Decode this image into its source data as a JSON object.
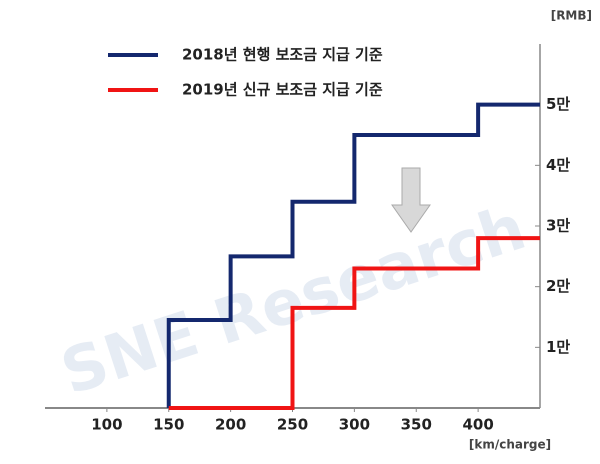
{
  "chart_data": {
    "type": "line",
    "step": "post",
    "x_unit": "[km/charge]",
    "y_unit": "[RMB]",
    "watermark": "SNE Research",
    "xlim": [
      50,
      450
    ],
    "xticks": [
      100,
      150,
      200,
      250,
      300,
      350,
      400
    ],
    "ylim": [
      0,
      60000
    ],
    "yticks": [
      {
        "value": 10000,
        "label": "1만"
      },
      {
        "value": 20000,
        "label": "2만"
      },
      {
        "value": 30000,
        "label": "3만"
      },
      {
        "value": 40000,
        "label": "4만"
      },
      {
        "value": 50000,
        "label": "5만"
      }
    ],
    "legend": "top-left",
    "series": [
      {
        "name": "2018년 현행 보조금 지급 기준",
        "color": "#14286e",
        "x": [
          150,
          150,
          200,
          250,
          300,
          400,
          450
        ],
        "values": [
          0,
          14500,
          25000,
          34000,
          45000,
          50000,
          50000
        ]
      },
      {
        "name": "2019년 신규 보조금 지급 기준",
        "color": "#f01414",
        "x": [
          150,
          250,
          300,
          400,
          450
        ],
        "values": [
          0,
          16500,
          23000,
          28000,
          28000
        ]
      }
    ]
  }
}
